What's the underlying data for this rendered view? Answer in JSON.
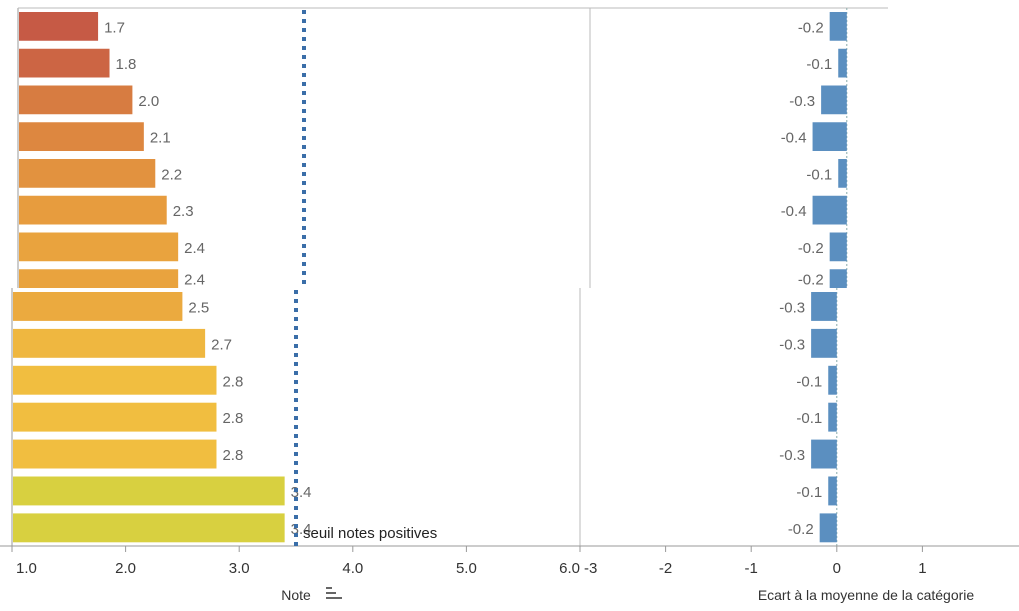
{
  "chart_data": [
    {
      "type": "bar",
      "orientation": "horizontal",
      "values": [
        1.7,
        1.8,
        2.0,
        2.1,
        2.2,
        2.3,
        2.4,
        2.4,
        2.5,
        2.7,
        2.8,
        2.8,
        2.8,
        3.4,
        3.4
      ],
      "value_labels": [
        "1.7",
        "1.8",
        "2.0",
        "2.1",
        "2.2",
        "2.3",
        "2.4",
        "2.4",
        "2.5",
        "2.7",
        "2.8",
        "2.8",
        "2.8",
        "3.4",
        "3.4"
      ],
      "color_scale": [
        "#c65a45",
        "#e69a3e",
        "#f2c040",
        "#d8d040"
      ],
      "xlabel": "Note",
      "xlim": [
        1.0,
        6.0
      ],
      "xticks": [
        "1.0",
        "2.0",
        "3.0",
        "4.0",
        "5.0",
        "6.0"
      ],
      "reference_line": {
        "value": 3.5,
        "label": "seuil notes positives",
        "color": "#3a6ea8"
      },
      "grid": false
    },
    {
      "type": "bar",
      "orientation": "horizontal",
      "values": [
        -0.2,
        -0.1,
        -0.3,
        -0.4,
        -0.1,
        -0.4,
        -0.2,
        -0.2,
        -0.3,
        -0.3,
        -0.1,
        -0.1,
        -0.3,
        -0.1,
        -0.2
      ],
      "value_labels": [
        "-0.2",
        "-0.1",
        "-0.3",
        "-0.4",
        "-0.1",
        "-0.4",
        "-0.2",
        "-0.2",
        "-0.3",
        "-0.3",
        "-0.1",
        "-0.1",
        "-0.3",
        "-0.1",
        "-0.2"
      ],
      "color": "#5b8fc0",
      "xlabel": "Ecart à la moyenne de la catégorie",
      "xlim": [
        -3,
        2
      ],
      "xticks": [
        "-3",
        "-2",
        "-1",
        "0",
        "1"
      ],
      "grid": false
    }
  ]
}
